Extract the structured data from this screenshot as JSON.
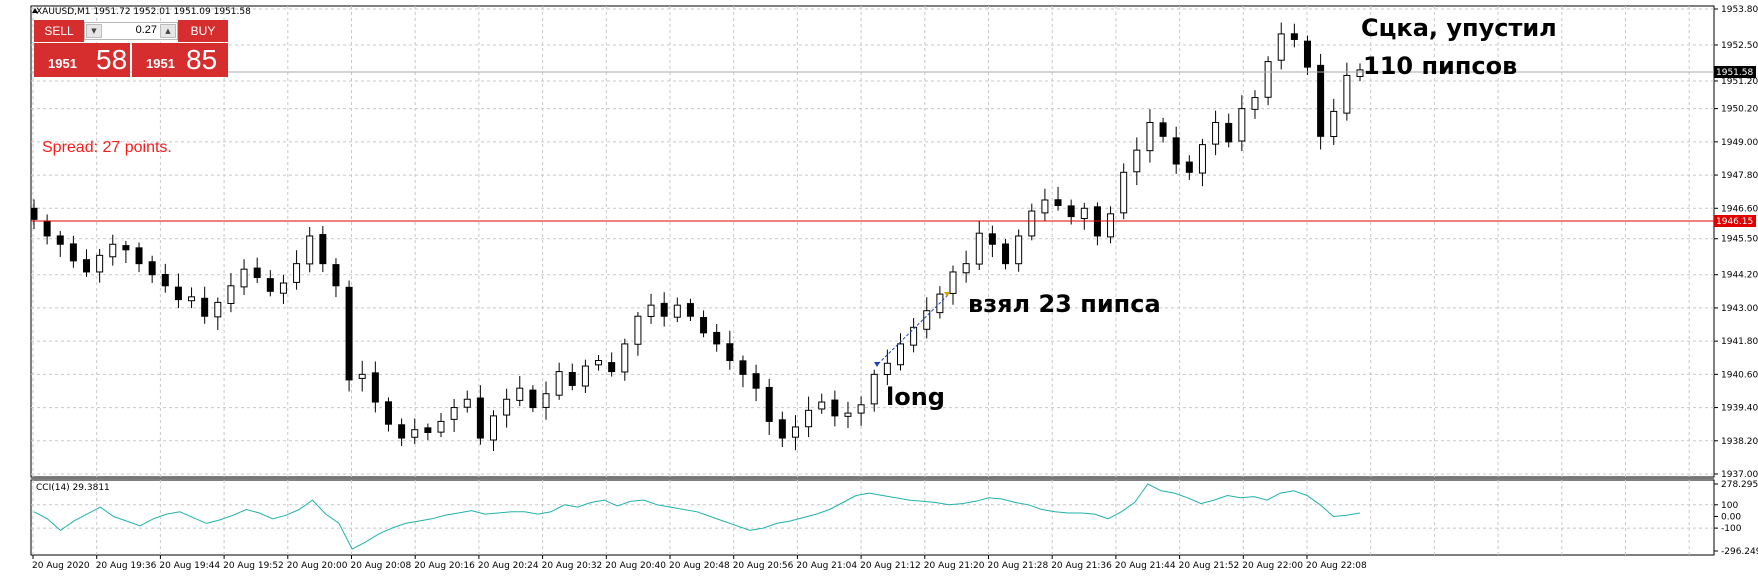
{
  "header": {
    "symbol_info": "XAUUSD,M1  1951.72 1952.01 1951.09 1951.58"
  },
  "trade_panel": {
    "sell_label": "SELL",
    "buy_label": "BUY",
    "lot_value": "0.27",
    "sell_price_small": "1951",
    "sell_price_big": "58",
    "buy_price_small": "1951",
    "buy_price_big": "85"
  },
  "spread_text": "Spread: 27 points.",
  "annotations": {
    "note_top_line1": "Сцка, упустил",
    "note_top_line2": "110 пипсов",
    "note_mid": "взял 23 пипса",
    "note_long": "long"
  },
  "price_labels": {
    "current": "1951.58",
    "horizontal_line": "1946.15"
  },
  "indicator": {
    "label": "CCI(14) 29.3811",
    "axis_ticks": [
      "278.2957",
      "100",
      "0.00",
      "-100",
      "-296.2496"
    ]
  },
  "colors": {
    "grid": "#c8c8c8",
    "hline": "#e00000",
    "price_label_bg": "#000000",
    "hline_label_bg": "#e00000",
    "cci_line": "#20b2aa",
    "button_red": "#d62e2e"
  },
  "chart_data": [
    {
      "type": "candlestick",
      "symbol": "XAUUSD",
      "timeframe": "M1",
      "y_ticks": [
        "1953.80",
        "1952.50",
        "1951.20",
        "1950.20",
        "1949.00",
        "1947.80",
        "1946.60",
        "1945.50",
        "1944.20",
        "1943.00",
        "1941.80",
        "1940.60",
        "1939.40",
        "1938.20",
        "1937.00"
      ],
      "ylim": [
        1937.0,
        1953.8
      ],
      "x_ticks": [
        "20 Aug 2020",
        "20 Aug 19:36",
        "20 Aug 19:44",
        "20 Aug 19:52",
        "20 Aug 20:00",
        "20 Aug 20:08",
        "20 Aug 20:16",
        "20 Aug 20:24",
        "20 Aug 20:32",
        "20 Aug 20:40",
        "20 Aug 20:48",
        "20 Aug 20:56",
        "20 Aug 21:04",
        "20 Aug 21:12",
        "20 Aug 21:20",
        "20 Aug 21:28",
        "20 Aug 21:36",
        "20 Aug 21:44",
        "20 Aug 21:52",
        "20 Aug 22:00",
        "20 Aug 22:08"
      ],
      "grid": true,
      "horizontal_line": 1946.15,
      "close_path": [
        1946.2,
        1945.6,
        1945.3,
        1944.7,
        1944.3,
        1944.9,
        1945.3,
        1945.1,
        1944.6,
        1944.2,
        1943.8,
        1943.3,
        1943.4,
        1942.7,
        1943.2,
        1943.8,
        1944.4,
        1944.1,
        1943.6,
        1943.9,
        1944.6,
        1945.6,
        1944.6,
        1943.8,
        1940.4,
        1940.6,
        1939.6,
        1938.8,
        1938.3,
        1938.6,
        1938.5,
        1938.9,
        1939.4,
        1939.7,
        1938.3,
        1939.1,
        1939.7,
        1940.1,
        1939.4,
        1939.9,
        1940.7,
        1940.2,
        1940.9,
        1941.1,
        1940.7,
        1941.7,
        1942.7,
        1943.1,
        1942.7,
        1943.1,
        1942.7,
        1942.1,
        1941.7,
        1941.1,
        1940.6,
        1940.1,
        1938.9,
        1938.3,
        1938.7,
        1939.3,
        1939.6,
        1939.1,
        1939.2,
        1939.5,
        1940.6,
        1941.0,
        1941.7,
        1942.3,
        1942.9,
        1943.5,
        1944.3,
        1944.6,
        1945.7,
        1945.3,
        1944.6,
        1945.6,
        1946.5,
        1946.9,
        1946.7,
        1946.3,
        1946.6,
        1945.6,
        1946.4,
        1947.9,
        1948.7,
        1949.7,
        1949.2,
        1948.2,
        1947.9,
        1948.9,
        1949.7,
        1949.0,
        1950.2,
        1950.6,
        1951.9,
        1952.9,
        1952.7,
        1951.7,
        1949.2,
        1950.1,
        1951.4,
        1951.6
      ]
    },
    {
      "type": "line",
      "name": "CCI(14)",
      "ylim": [
        -296.2496,
        278.2957
      ],
      "values": [
        40,
        -20,
        -120,
        -40,
        20,
        80,
        0,
        -40,
        -80,
        -20,
        20,
        40,
        -10,
        -60,
        -30,
        10,
        60,
        30,
        -20,
        10,
        60,
        140,
        20,
        -60,
        -280,
        -220,
        -150,
        -100,
        -60,
        -40,
        -20,
        10,
        30,
        50,
        20,
        30,
        40,
        40,
        20,
        40,
        100,
        80,
        120,
        140,
        90,
        130,
        140,
        100,
        80,
        60,
        40,
        0,
        -40,
        -80,
        -120,
        -100,
        -60,
        -40,
        -10,
        20,
        60,
        120,
        180,
        200,
        180,
        160,
        140,
        130,
        120,
        100,
        110,
        130,
        160,
        150,
        120,
        100,
        60,
        40,
        30,
        30,
        20,
        -20,
        40,
        120,
        280,
        220,
        200,
        160,
        110,
        140,
        180,
        160,
        170,
        140,
        200,
        220,
        180,
        100,
        0,
        10,
        30
      ]
    }
  ]
}
